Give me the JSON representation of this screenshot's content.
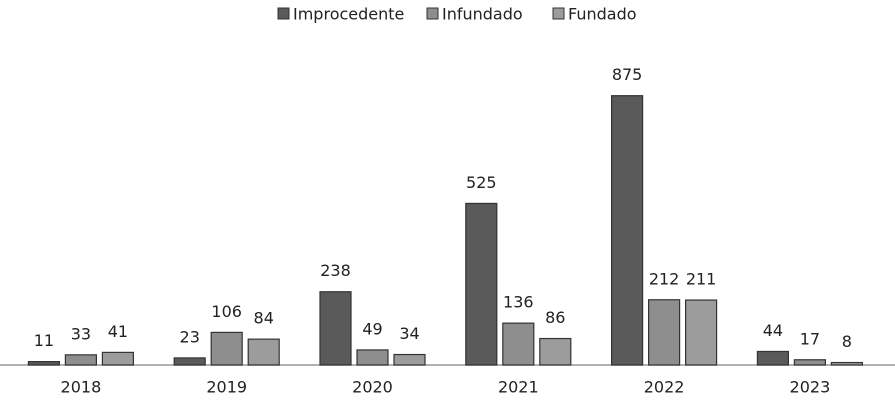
{
  "chart_data": {
    "type": "bar",
    "categories": [
      "2018",
      "2019",
      "2020",
      "2021",
      "2022",
      "2023"
    ],
    "series": [
      {
        "name": "Improcedente",
        "color": "#5a5a5a",
        "values": [
          11,
          23,
          238,
          525,
          875,
          44
        ]
      },
      {
        "name": "Infundado",
        "color": "#8e8e8e",
        "values": [
          33,
          106,
          49,
          136,
          212,
          17
        ]
      },
      {
        "name": "Fundado",
        "color": "#9c9c9c",
        "values": [
          41,
          84,
          34,
          86,
          211,
          8
        ]
      }
    ],
    "ylim": [
      0,
      900
    ],
    "legend": "top"
  }
}
